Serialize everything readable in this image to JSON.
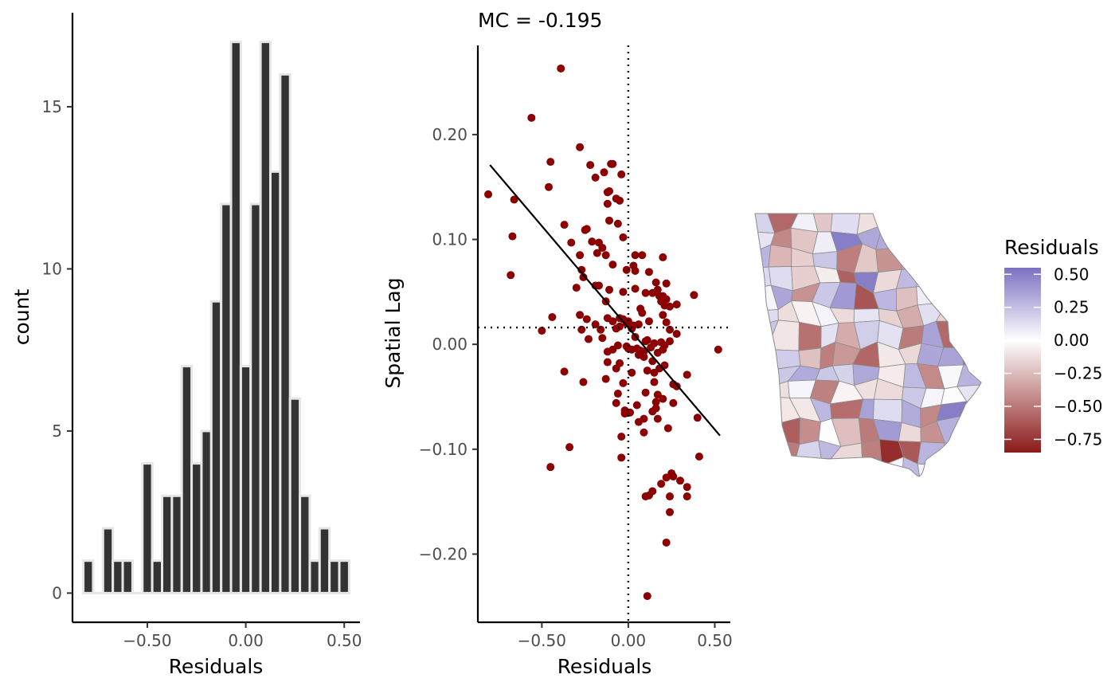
{
  "chart_data": [
    {
      "type": "bar",
      "subtype": "histogram",
      "xlabel": "Residuals",
      "ylabel": "count",
      "xlim": [
        -0.88,
        0.58
      ],
      "ylim": [
        -0.9,
        17.9
      ],
      "xticks": [
        -0.5,
        0.0,
        0.5
      ],
      "xtick_labels": [
        "−0.50",
        "0.00",
        "0.50"
      ],
      "yticks": [
        0,
        5,
        10,
        15
      ],
      "ytick_labels": [
        "0",
        "5",
        "10",
        "15"
      ],
      "bin_width": 0.05,
      "bin_centers": [
        -0.8,
        -0.75,
        -0.7,
        -0.65,
        -0.6,
        -0.55,
        -0.5,
        -0.45,
        -0.4,
        -0.35,
        -0.3,
        -0.25,
        -0.2,
        -0.15,
        -0.1,
        -0.05,
        0.0,
        0.05,
        0.1,
        0.15,
        0.2,
        0.25,
        0.3,
        0.35,
        0.4,
        0.45,
        0.5
      ],
      "values": [
        1,
        0,
        2,
        1,
        1,
        0,
        4,
        1,
        3,
        3,
        7,
        4,
        5,
        9,
        12,
        17,
        7,
        12,
        17,
        13,
        16,
        6,
        3,
        1,
        2,
        1,
        1
      ],
      "bar_color": "#333333",
      "outline_color": "#e6e6e6",
      "grid": false
    },
    {
      "type": "scatter",
      "title": "MC = -0.195",
      "xlabel": "Residuals",
      "ylabel": "Spatial Lag",
      "xlim": [
        -0.87,
        0.59
      ],
      "ylim": [
        -0.265,
        0.285
      ],
      "xticks": [
        -0.5,
        0.0,
        0.5
      ],
      "xtick_labels": [
        "−0.50",
        "0.00",
        "0.50"
      ],
      "yticks": [
        -0.2,
        -0.1,
        0.0,
        0.1,
        0.2
      ],
      "ytick_labels": [
        "−0.20",
        "−0.10",
        "0.00",
        "0.10",
        "0.20"
      ],
      "point_color": "#8b0000",
      "vline_x": 0.0,
      "hline_y": 0.016,
      "regression_line": [
        [
          -0.8,
          0.171
        ],
        [
          0.53,
          -0.087
        ]
      ],
      "grid": false,
      "points": [
        [
          -0.39,
          0.263
        ],
        [
          -0.56,
          0.216
        ],
        [
          -0.28,
          0.188
        ],
        [
          -0.81,
          0.143
        ],
        [
          -0.66,
          0.138
        ],
        [
          -0.46,
          0.15
        ],
        [
          -0.45,
          0.174
        ],
        [
          -0.22,
          0.171
        ],
        [
          -0.1,
          0.172
        ],
        [
          -0.09,
          0.172
        ],
        [
          -0.14,
          0.164
        ],
        [
          -0.04,
          0.162
        ],
        [
          -0.19,
          0.159
        ],
        [
          -0.12,
          0.145
        ],
        [
          -0.11,
          0.146
        ],
        [
          -0.05,
          0.137
        ],
        [
          -0.07,
          0.139
        ],
        [
          -0.12,
          0.134
        ],
        [
          -0.37,
          0.114
        ],
        [
          -0.24,
          0.11
        ],
        [
          -0.25,
          0.109
        ],
        [
          -0.11,
          0.118
        ],
        [
          -0.06,
          0.115
        ],
        [
          -0.67,
          0.103
        ],
        [
          -0.33,
          0.097
        ],
        [
          -0.21,
          0.098
        ],
        [
          -0.17,
          0.097
        ],
        [
          -0.15,
          0.092
        ],
        [
          -0.03,
          0.102
        ],
        [
          -0.28,
          0.085
        ],
        [
          -0.13,
          0.085
        ],
        [
          -0.09,
          0.076
        ],
        [
          -0.18,
          0.087
        ],
        [
          0.04,
          0.085
        ],
        [
          0.08,
          0.085
        ],
        [
          0.2,
          0.083
        ],
        [
          -0.68,
          0.066
        ],
        [
          -0.27,
          0.071
        ],
        [
          -0.26,
          0.064
        ],
        [
          -0.19,
          0.056
        ],
        [
          -0.17,
          0.056
        ],
        [
          -0.11,
          0.052
        ],
        [
          -0.01,
          0.071
        ],
        [
          0.03,
          0.075
        ],
        [
          0.04,
          0.07
        ],
        [
          0.12,
          0.069
        ],
        [
          -0.3,
          0.054
        ],
        [
          -0.03,
          0.05
        ],
        [
          0.04,
          0.053
        ],
        [
          0.1,
          0.049
        ],
        [
          0.16,
          0.059
        ],
        [
          0.22,
          0.058
        ],
        [
          0.17,
          0.052
        ],
        [
          0.14,
          0.049
        ],
        [
          0.18,
          0.046
        ],
        [
          0.2,
          0.046
        ],
        [
          0.19,
          0.041
        ],
        [
          0.22,
          0.043
        ],
        [
          0.38,
          0.047
        ],
        [
          0.28,
          0.038
        ],
        [
          -0.13,
          0.041
        ],
        [
          0.07,
          0.034
        ],
        [
          0.08,
          0.03
        ],
        [
          0.21,
          0.037
        ],
        [
          0.24,
          0.036
        ],
        [
          -0.44,
          0.026
        ],
        [
          -0.28,
          0.028
        ],
        [
          -0.24,
          0.024
        ],
        [
          -0.19,
          0.019
        ],
        [
          -0.12,
          0.025
        ],
        [
          -0.09,
          0.022
        ],
        [
          -0.05,
          0.025
        ],
        [
          -0.03,
          0.024
        ],
        [
          -0.01,
          0.02
        ],
        [
          0.0,
          0.022
        ],
        [
          0.03,
          0.018
        ],
        [
          0.06,
          0.019
        ],
        [
          0.12,
          0.022
        ],
        [
          0.2,
          0.028
        ],
        [
          0.22,
          0.021
        ],
        [
          -0.5,
          0.013
        ],
        [
          -0.27,
          0.014
        ],
        [
          -0.16,
          0.014
        ],
        [
          -0.07,
          0.015
        ],
        [
          -0.05,
          0.017
        ],
        [
          0.02,
          0.015
        ],
        [
          0.24,
          0.014
        ],
        [
          -0.23,
          0.005
        ],
        [
          -0.15,
          0.006
        ],
        [
          -0.01,
          -0.002
        ],
        [
          0.04,
          0.007
        ],
        [
          0.1,
          0.003
        ],
        [
          0.11,
          0.004
        ],
        [
          0.15,
          0.001
        ],
        [
          0.19,
          0.002
        ],
        [
          0.21,
          -0.001
        ],
        [
          0.24,
          0.003
        ],
        [
          0.28,
          0.01
        ],
        [
          -0.12,
          -0.007
        ],
        [
          -0.09,
          -0.005
        ],
        [
          -0.06,
          -0.001
        ],
        [
          0.0,
          -0.004
        ],
        [
          0.02,
          -0.005
        ],
        [
          0.05,
          -0.004
        ],
        [
          0.07,
          -0.006
        ],
        [
          0.09,
          -0.007
        ],
        [
          0.13,
          -0.003
        ],
        [
          0.17,
          -0.008
        ],
        [
          0.2,
          -0.005
        ],
        [
          0.52,
          -0.005
        ],
        [
          -0.12,
          -0.017
        ],
        [
          -0.05,
          -0.018
        ],
        [
          0.06,
          -0.01
        ],
        [
          0.09,
          -0.012
        ],
        [
          0.14,
          -0.016
        ],
        [
          -0.37,
          -0.026
        ],
        [
          -0.07,
          -0.023
        ],
        [
          0.02,
          -0.027
        ],
        [
          0.11,
          -0.025
        ],
        [
          0.15,
          -0.027
        ],
        [
          0.18,
          -0.023
        ],
        [
          0.21,
          -0.02
        ],
        [
          0.34,
          -0.029
        ],
        [
          -0.26,
          -0.036
        ],
        [
          -0.13,
          -0.033
        ],
        [
          -0.03,
          -0.037
        ],
        [
          0.15,
          -0.036
        ],
        [
          0.26,
          -0.038
        ],
        [
          0.28,
          -0.04
        ],
        [
          -0.06,
          -0.047
        ],
        [
          0.1,
          -0.046
        ],
        [
          0.17,
          -0.048
        ],
        [
          -0.07,
          -0.056
        ],
        [
          -0.02,
          -0.063
        ],
        [
          0.05,
          -0.058
        ],
        [
          0.16,
          -0.055
        ],
        [
          0.2,
          -0.052
        ],
        [
          0.26,
          -0.056
        ],
        [
          -0.02,
          -0.066
        ],
        [
          0.01,
          -0.065
        ],
        [
          0.09,
          -0.071
        ],
        [
          0.14,
          -0.064
        ],
        [
          0.16,
          -0.061
        ],
        [
          0.06,
          -0.074
        ],
        [
          0.17,
          -0.071
        ],
        [
          0.4,
          -0.07
        ],
        [
          0.09,
          -0.084
        ],
        [
          0.23,
          -0.08
        ],
        [
          -0.04,
          -0.088
        ],
        [
          -0.34,
          -0.098
        ],
        [
          -0.04,
          -0.108
        ],
        [
          0.41,
          -0.107
        ],
        [
          -0.45,
          -0.117
        ],
        [
          0.25,
          -0.123
        ],
        [
          0.22,
          -0.127
        ],
        [
          0.26,
          -0.126
        ],
        [
          0.3,
          -0.13
        ],
        [
          0.19,
          -0.133
        ],
        [
          0.34,
          -0.136
        ],
        [
          0.12,
          -0.144
        ],
        [
          0.14,
          -0.14
        ],
        [
          0.1,
          -0.145
        ],
        [
          0.24,
          -0.145
        ],
        [
          0.34,
          -0.145
        ],
        [
          0.24,
          -0.16
        ],
        [
          0.22,
          -0.189
        ],
        [
          0.11,
          -0.24
        ]
      ]
    }
  ],
  "map": {
    "legend_title": "Residuals",
    "legend_labels": [
      "0.50",
      "0.25",
      "0.00",
      "−0.25",
      "−0.50",
      "−0.75"
    ],
    "legend_values": [
      0.5,
      0.25,
      0.0,
      -0.25,
      -0.5,
      -0.75
    ],
    "value_range": [
      -0.85,
      0.55
    ],
    "color_high": "#7b71c2",
    "color_mid": "#ffffff",
    "color_low": "#8b1a1a",
    "border_color": "#8c8c8c"
  }
}
